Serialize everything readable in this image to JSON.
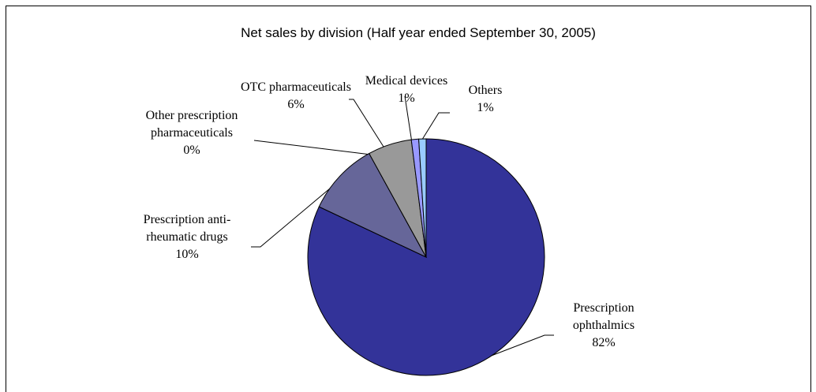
{
  "chart_data": {
    "type": "pie",
    "title": "Net sales by division (Half year ended September 30, 2005)",
    "categories": [
      "Prescription ophthalmics",
      "Prescription anti-rheumatic drugs",
      "Other prescription pharmaceuticals",
      "OTC pharmaceuticals",
      "Medical devices",
      "Others"
    ],
    "values": [
      82,
      10,
      0,
      6,
      1,
      1
    ],
    "value_labels": [
      "82%",
      "10%",
      "0%",
      "6%",
      "1%",
      "1%"
    ],
    "colors": [
      "#333399",
      "#666699",
      "#993366",
      "#999999",
      "#9999ff",
      "#99ccff"
    ]
  }
}
